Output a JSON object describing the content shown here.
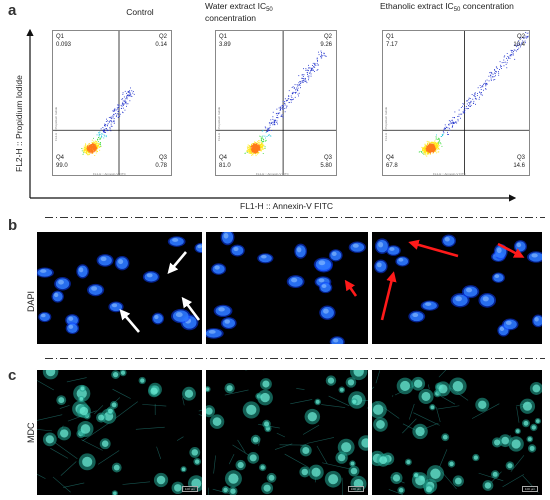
{
  "panel_a": {
    "letter": "a",
    "columns": [
      {
        "title_line1": "Control",
        "title_line2": ""
      },
      {
        "title_line1": "Water extract IC",
        "title_sub": "50",
        "title_line2": "concentration"
      },
      {
        "title_line1": "Ethanolic extract IC",
        "title_sub": "50",
        "title_line2": "concentration"
      }
    ],
    "y_axis_label": "FL2-H :: Propidium Iodide",
    "x_axis_label": "FL1-H :: Annexin-V FITC",
    "plot_tiny_y": "FL2-H :: Propidium Iodide",
    "plot_tiny_x": "FL1-H :: Annexin-V FITC",
    "plots": [
      {
        "q1_label": "Q1",
        "q1": "0.093",
        "q2_label": "Q2",
        "q2": "0.14",
        "q3_label": "Q3",
        "q3": "0.78",
        "q4_label": "Q4",
        "q4": "99.0"
      },
      {
        "q1_label": "Q1",
        "q1": "3.89",
        "q2_label": "Q2",
        "q2": "9.26",
        "q3_label": "Q3",
        "q3": "5.80",
        "q4_label": "Q4",
        "q4": "81.0"
      },
      {
        "q1_label": "Q1",
        "q1": "7.17",
        "q2_label": "Q2",
        "q2": "10.4",
        "q3_label": "Q3",
        "q3": "14.6",
        "q4_label": "Q4",
        "q4": "67.8"
      }
    ]
  },
  "panel_b": {
    "letter": "b",
    "row_label": "DAPI"
  },
  "panel_c": {
    "letter": "c",
    "row_label": "MDC",
    "scale_bar": "100 μm"
  },
  "colors": {
    "dapi_blue": "#1e6cff",
    "mdc_cyan": "#3fe0c8",
    "arrow_red": "#ff1a1a",
    "arrow_white": "#ffffff"
  }
}
